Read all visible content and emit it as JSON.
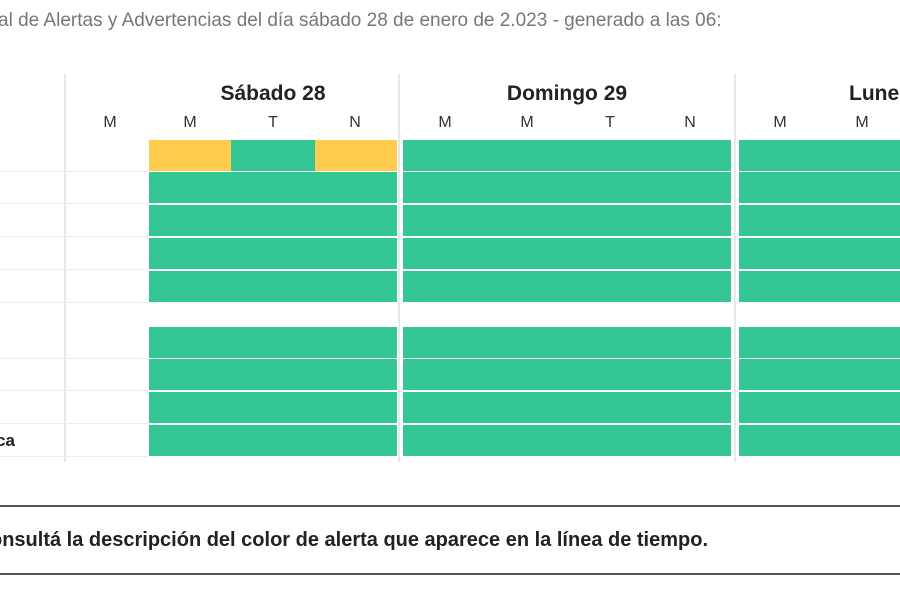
{
  "header": {
    "title": "al de Alertas y Advertencias del día sábado 28 de enero de 2.023 - generado a las 06:"
  },
  "days": [
    {
      "label": "Sábado 28",
      "periods": [
        "M",
        "T",
        "N"
      ]
    },
    {
      "label": "Domingo 29",
      "periods": [
        "M",
        "M",
        "T",
        "N"
      ]
    },
    {
      "label": "Lune",
      "periods": [
        "M",
        "M"
      ]
    }
  ],
  "first_period": "M",
  "colors": {
    "green": "#34c693",
    "yellow": "#ffcc4d"
  },
  "rows": [
    {
      "label": "",
      "sabado": [
        "yellow",
        "green",
        "yellow"
      ],
      "domingo": "green",
      "lunes": "green"
    },
    {
      "label": "",
      "sabado": [
        "green",
        "green",
        "green"
      ],
      "domingo": "green",
      "lunes": "green"
    },
    {
      "label": "",
      "sabado": [
        "green",
        "green",
        "green"
      ],
      "domingo": "green",
      "lunes": "green"
    },
    {
      "label": "",
      "sabado": [
        "green",
        "green",
        "green"
      ],
      "domingo": "green",
      "lunes": "green"
    },
    {
      "label": "",
      "sabado": [
        "green",
        "green",
        "green"
      ],
      "domingo": "green",
      "lunes": "green"
    },
    {
      "label": "",
      "sabado": [
        "green",
        "green",
        "green"
      ],
      "domingo": "green",
      "lunes": "green"
    },
    {
      "label": "",
      "sabado": [
        "green",
        "green",
        "green"
      ],
      "domingo": "green",
      "lunes": "green"
    },
    {
      "label": "",
      "sabado": [
        "green",
        "green",
        "green"
      ],
      "domingo": "green",
      "lunes": "green"
    },
    {
      "label": "ca",
      "sabado": [
        "green",
        "green",
        "green"
      ],
      "domingo": "green",
      "lunes": "green"
    }
  ],
  "footer": {
    "note": "onsultá la descripción del color de alerta que aparece en la línea de tiempo."
  }
}
